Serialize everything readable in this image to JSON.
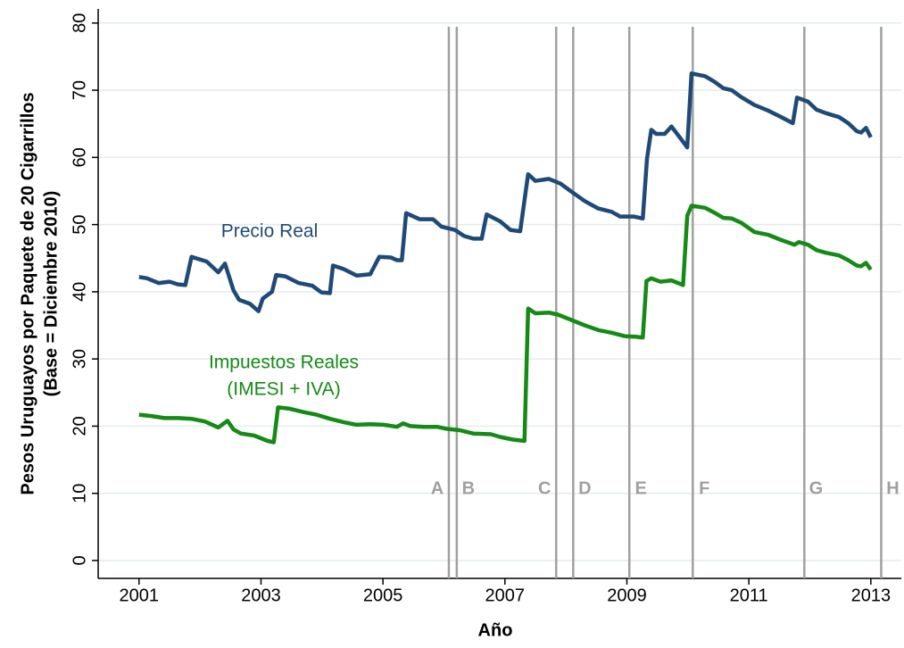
{
  "chart_data": {
    "type": "line",
    "ylabel": [
      "Pesos Uruguayos por Paquete de 20 Cigarrillos",
      "(Base = Diciembre 2010)"
    ],
    "xlabel": "Año",
    "xlim": [
      2000.33,
      2013.5
    ],
    "ylim": [
      -2.66,
      82.1
    ],
    "xticks": [
      2001,
      2003,
      2005,
      2007,
      2009,
      2011,
      2013
    ],
    "yticks": [
      0,
      10,
      20,
      30,
      40,
      50,
      60,
      70,
      80
    ],
    "grid": true,
    "series": [
      {
        "name": "Precio Real",
        "color": "#1f4a78",
        "x": [
          2001.0,
          2001.13,
          2001.32,
          2001.5,
          2001.64,
          2001.76,
          2001.86,
          2002.11,
          2002.3,
          2002.41,
          2002.55,
          2002.64,
          2002.82,
          2002.96,
          2003.03,
          2003.18,
          2003.25,
          2003.4,
          2003.62,
          2003.84,
          2003.99,
          2004.13,
          2004.18,
          2004.35,
          2004.57,
          2004.79,
          2004.94,
          2005.13,
          2005.23,
          2005.31,
          2005.38,
          2005.6,
          2005.82,
          2005.96,
          2006.18,
          2006.33,
          2006.48,
          2006.62,
          2006.7,
          2006.92,
          2007.09,
          2007.25,
          2007.38,
          2007.5,
          2007.72,
          2007.91,
          2008.09,
          2008.31,
          2008.53,
          2008.75,
          2008.89,
          2009.11,
          2009.26,
          2009.33,
          2009.4,
          2009.48,
          2009.62,
          2009.73,
          2009.84,
          2009.99,
          2010.06,
          2010.28,
          2010.43,
          2010.58,
          2010.72,
          2010.87,
          2011.09,
          2011.31,
          2011.53,
          2011.72,
          2011.79,
          2011.97,
          2012.11,
          2012.26,
          2012.48,
          2012.63,
          2012.77,
          2012.84,
          2012.92,
          2013.0
        ],
        "values": [
          42.2,
          42.0,
          41.3,
          41.5,
          41.1,
          41.0,
          45.2,
          44.5,
          42.9,
          44.2,
          40.2,
          38.8,
          38.2,
          37.1,
          39.0,
          40.0,
          42.5,
          42.3,
          41.3,
          40.9,
          39.9,
          39.8,
          43.9,
          43.4,
          42.4,
          42.6,
          45.2,
          45.1,
          44.7,
          44.7,
          51.7,
          50.8,
          50.8,
          49.7,
          49.2,
          48.3,
          47.9,
          47.9,
          51.5,
          50.5,
          49.2,
          49.0,
          57.5,
          56.5,
          56.8,
          56.1,
          54.9,
          53.5,
          52.4,
          51.9,
          51.2,
          51.2,
          50.9,
          59.8,
          64.1,
          63.5,
          63.5,
          64.6,
          63.3,
          61.5,
          72.5,
          72.1,
          71.3,
          70.3,
          70.0,
          69.0,
          67.8,
          67.0,
          66.0,
          65.1,
          68.9,
          68.3,
          67.1,
          66.6,
          66.0,
          65.1,
          63.9,
          63.7,
          64.4,
          63.0
        ]
      },
      {
        "name": "Impuestos Reales (IMESI + IVA)",
        "color": "#168a16",
        "x": [
          2001.0,
          2001.2,
          2001.42,
          2001.64,
          2001.86,
          2002.08,
          2002.3,
          2002.45,
          2002.55,
          2002.67,
          2002.89,
          2003.11,
          2003.21,
          2003.28,
          2003.47,
          2003.69,
          2003.91,
          2004.13,
          2004.35,
          2004.57,
          2004.79,
          2005.01,
          2005.23,
          2005.33,
          2005.45,
          2005.67,
          2005.89,
          2006.04,
          2006.26,
          2006.48,
          2006.77,
          2006.92,
          2007.13,
          2007.32,
          2007.38,
          2007.5,
          2007.72,
          2007.87,
          2008.09,
          2008.31,
          2008.53,
          2008.75,
          2008.96,
          2009.14,
          2009.26,
          2009.32,
          2009.4,
          2009.55,
          2009.73,
          2009.84,
          2009.92,
          2009.99,
          2010.06,
          2010.28,
          2010.43,
          2010.58,
          2010.72,
          2010.87,
          2011.09,
          2011.31,
          2011.53,
          2011.75,
          2011.82,
          2011.97,
          2012.11,
          2012.26,
          2012.48,
          2012.63,
          2012.77,
          2012.84,
          2012.92,
          2013.0
        ],
        "values": [
          21.7,
          21.5,
          21.2,
          21.2,
          21.1,
          20.7,
          19.8,
          20.8,
          19.5,
          18.9,
          18.6,
          17.8,
          17.6,
          22.8,
          22.6,
          22.1,
          21.7,
          21.1,
          20.6,
          20.2,
          20.3,
          20.2,
          19.9,
          20.4,
          20.0,
          19.9,
          19.9,
          19.6,
          19.4,
          18.9,
          18.8,
          18.4,
          18.0,
          17.8,
          37.5,
          36.8,
          36.9,
          36.6,
          35.8,
          35.0,
          34.3,
          33.9,
          33.4,
          33.3,
          33.2,
          41.6,
          42.0,
          41.5,
          41.7,
          41.3,
          41.0,
          51.3,
          52.8,
          52.5,
          51.8,
          51.0,
          50.9,
          50.3,
          48.9,
          48.5,
          47.7,
          47.0,
          47.4,
          47.0,
          46.2,
          45.8,
          45.4,
          44.7,
          43.9,
          43.8,
          44.3,
          43.3
        ]
      }
    ],
    "annotations": [
      [
        "Precio Real"
      ],
      [
        "Impuestos Reales",
        "(IMESI + IVA)"
      ]
    ],
    "events": [
      {
        "x": 2006.08,
        "label": "A"
      },
      {
        "x": 2006.21,
        "label": "B"
      },
      {
        "x": 2007.84,
        "label": "C"
      },
      {
        "x": 2008.12,
        "label": "D"
      },
      {
        "x": 2009.04,
        "label": "E"
      },
      {
        "x": 2010.08,
        "label": "F"
      },
      {
        "x": 2011.91,
        "label": "G"
      },
      {
        "x": 2013.17,
        "label": "H"
      }
    ]
  }
}
